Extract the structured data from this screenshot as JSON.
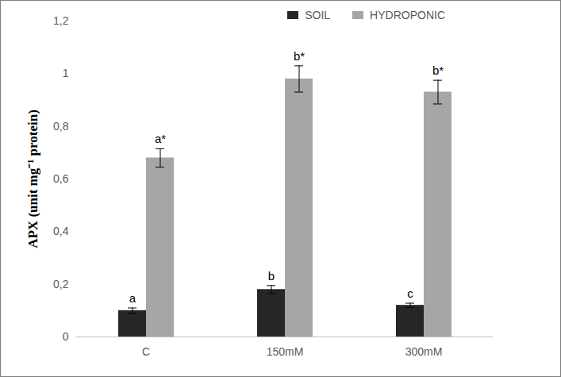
{
  "chart_data": {
    "type": "bar",
    "y_label": "APX (unit mg⁻¹ protein)",
    "categories": [
      "C",
      "150mM",
      "300mM"
    ],
    "series": [
      {
        "name": "SOIL",
        "color": "#262626",
        "values": [
          0.1,
          0.18,
          0.12
        ],
        "errors": [
          0.01,
          0.015,
          0.008
        ],
        "letters": [
          "a",
          "b",
          "c"
        ]
      },
      {
        "name": "HYDROPONIC",
        "color": "#a6a6a6",
        "values": [
          0.68,
          0.98,
          0.93
        ],
        "errors": [
          0.035,
          0.05,
          0.045
        ],
        "letters": [
          "a*",
          "b*",
          "b*"
        ]
      }
    ],
    "ylim": [
      0,
      1.2
    ],
    "yticks": [
      0,
      {
        "value": 0.2,
        "label": "0,2"
      },
      {
        "value": 0.4,
        "label": "0,4"
      },
      {
        "value": 0.6,
        "label": "0,6"
      },
      {
        "value": 0.8,
        "label": "0,8"
      },
      {
        "value": 1,
        "label": "1"
      },
      {
        "value": 1.2,
        "label": "1,2"
      }
    ],
    "legend": "top-right",
    "grid": false
  }
}
